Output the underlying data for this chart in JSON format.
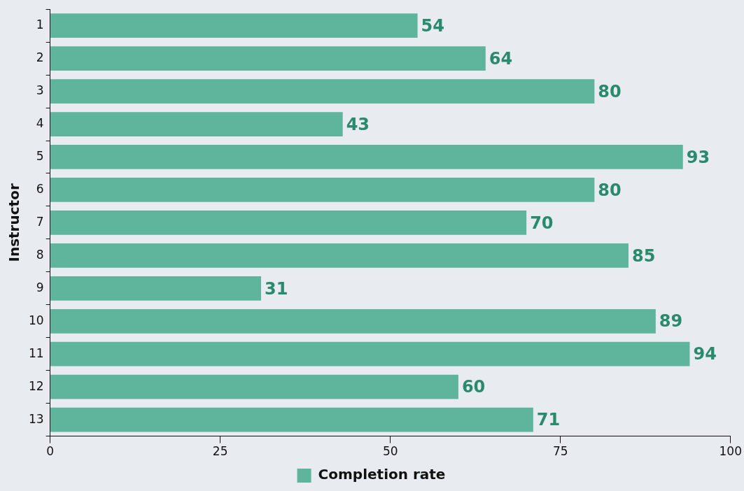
{
  "chart_data": {
    "type": "bar",
    "orientation": "horizontal",
    "ylabel": "Instructor",
    "categories": [
      "1",
      "2",
      "3",
      "4",
      "5",
      "6",
      "7",
      "8",
      "9",
      "10",
      "11",
      "12",
      "13"
    ],
    "series": [
      {
        "name": "Completion rate",
        "color": "#5fb49c",
        "values": [
          54,
          64,
          80,
          43,
          93,
          80,
          70,
          85,
          31,
          89,
          94,
          60,
          71
        ]
      }
    ],
    "xlim": [
      0,
      100
    ],
    "xticks": [
      0,
      25,
      50,
      75,
      100
    ],
    "data_labels": true,
    "grid": false,
    "legend": "bottom"
  }
}
